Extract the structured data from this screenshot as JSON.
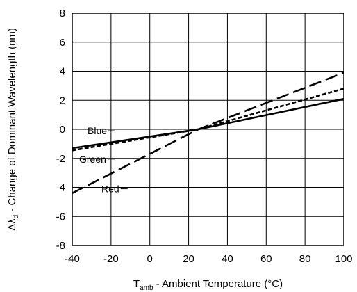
{
  "chart_data": {
    "type": "line",
    "xlabel": {
      "main": "T",
      "sub": "amb",
      "rest": " - Ambient Temperature (°C)"
    },
    "ylabel": {
      "main": "Δλ",
      "sub": "d",
      "rest": " - Change of Dominant Wavelength (nm)"
    },
    "xlim": [
      -40,
      100
    ],
    "ylim": [
      -8,
      8
    ],
    "xticks": [
      -40,
      -20,
      0,
      20,
      40,
      60,
      80,
      100
    ],
    "yticks": [
      -8,
      -6,
      -4,
      -2,
      0,
      2,
      4,
      6,
      8
    ],
    "grid": true,
    "series": [
      {
        "name": "Blue",
        "style": "solid",
        "x": [
          -40,
          25,
          100
        ],
        "y": [
          -1.3,
          0.0,
          2.1
        ]
      },
      {
        "name": "Green",
        "style": "short-dash",
        "x": [
          -40,
          25,
          100
        ],
        "y": [
          -1.45,
          0.0,
          2.8
        ]
      },
      {
        "name": "Red",
        "style": "long-dash",
        "x": [
          -40,
          25,
          100
        ],
        "y": [
          -4.4,
          0.0,
          3.9
        ]
      }
    ]
  }
}
